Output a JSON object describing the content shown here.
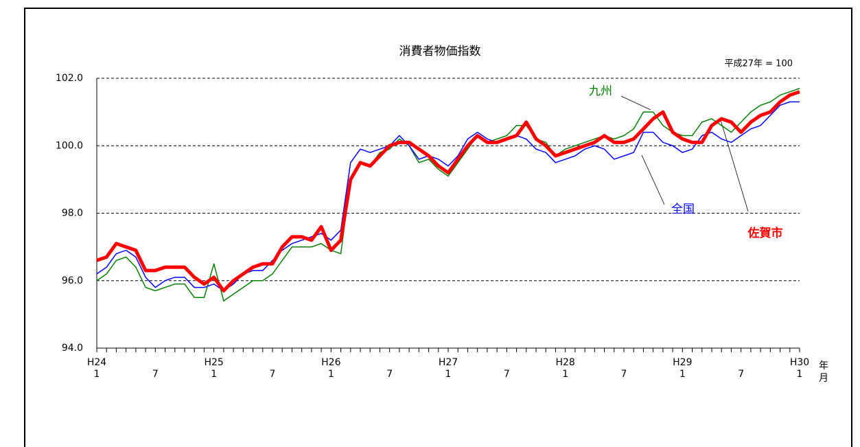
{
  "chart_data": {
    "type": "line",
    "title": "消費者物価指数",
    "annotation": "平成27年 = 100",
    "x_unit_labels": [
      "年",
      "月"
    ],
    "categories": [
      "1",
      null,
      null,
      null,
      null,
      null,
      "7",
      null,
      null,
      null,
      null,
      null,
      "1",
      null,
      null,
      null,
      null,
      null,
      "7",
      null,
      null,
      null,
      null,
      null,
      "1",
      null,
      null,
      null,
      null,
      null,
      "7",
      null,
      null,
      null,
      null,
      null,
      "1",
      null,
      null,
      null,
      null,
      null,
      "7",
      null,
      null,
      null,
      null,
      null,
      "1",
      null,
      null,
      null,
      null,
      null,
      "7",
      null,
      null,
      null,
      null,
      null,
      "1",
      null,
      null,
      null,
      null,
      null,
      "7",
      null,
      null,
      null,
      null,
      null,
      "1"
    ],
    "era_labels": [
      "H24",
      null,
      null,
      null,
      null,
      null,
      null,
      null,
      null,
      null,
      null,
      null,
      "H25",
      null,
      null,
      null,
      null,
      null,
      null,
      null,
      null,
      null,
      null,
      null,
      "H26",
      null,
      null,
      null,
      null,
      null,
      null,
      null,
      null,
      null,
      null,
      null,
      "H27",
      null,
      null,
      null,
      null,
      null,
      null,
      null,
      null,
      null,
      null,
      null,
      "H28",
      null,
      null,
      null,
      null,
      null,
      null,
      null,
      null,
      null,
      null,
      null,
      "H29",
      null,
      null,
      null,
      null,
      null,
      null,
      null,
      null,
      null,
      null,
      null,
      "H30"
    ],
    "ylim": [
      94,
      102
    ],
    "yticks": [
      {
        "value": 94,
        "label": "94.0"
      },
      {
        "value": 96,
        "label": "96.0"
      },
      {
        "value": 98,
        "label": "98.0"
      },
      {
        "value": 100,
        "label": "100.0"
      },
      {
        "value": 102,
        "label": "102.0"
      }
    ],
    "grid": true,
    "series": [
      {
        "name": "九州",
        "color": "#008000",
        "values": [
          96.0,
          96.2,
          96.6,
          96.7,
          96.4,
          95.8,
          95.7,
          95.8,
          95.9,
          95.9,
          95.5,
          95.5,
          96.5,
          95.4,
          95.6,
          95.8,
          96.0,
          96.0,
          96.2,
          96.6,
          97.0,
          97.0,
          97.0,
          97.1,
          96.9,
          96.8,
          99.0,
          99.5,
          99.4,
          99.8,
          99.9,
          100.2,
          100.0,
          99.5,
          99.6,
          99.3,
          99.1,
          99.5,
          99.9,
          100.3,
          100.1,
          100.2,
          100.3,
          100.6,
          100.6,
          100.2,
          100.1,
          99.7,
          99.9,
          100.0,
          100.1,
          100.2,
          100.3,
          100.2,
          100.3,
          100.5,
          101.0,
          101.0,
          100.6,
          100.4,
          100.3,
          100.3,
          100.7,
          100.8,
          100.6,
          100.4,
          100.7,
          101.0,
          101.2,
          101.3,
          101.5,
          101.6,
          101.7
        ]
      },
      {
        "name": "全国",
        "color": "#0000ff",
        "values": [
          96.2,
          96.4,
          96.8,
          96.9,
          96.7,
          96.1,
          95.8,
          96.0,
          96.1,
          96.1,
          95.8,
          95.8,
          95.9,
          95.7,
          95.9,
          96.2,
          96.3,
          96.3,
          96.6,
          96.9,
          97.1,
          97.2,
          97.3,
          97.4,
          97.2,
          97.5,
          99.5,
          99.9,
          99.8,
          99.9,
          100.0,
          100.3,
          100.0,
          99.6,
          99.7,
          99.6,
          99.4,
          99.7,
          100.2,
          100.4,
          100.2,
          100.1,
          100.2,
          100.3,
          100.2,
          99.9,
          99.8,
          99.5,
          99.6,
          99.7,
          99.9,
          100.0,
          99.9,
          99.6,
          99.7,
          99.8,
          100.4,
          100.4,
          100.1,
          100.0,
          99.8,
          99.9,
          100.3,
          100.4,
          100.2,
          100.1,
          100.3,
          100.5,
          100.6,
          100.9,
          101.2,
          101.3,
          101.3
        ]
      },
      {
        "name": "佐賀市",
        "color": "#ff0000",
        "values": [
          96.6,
          96.7,
          97.1,
          97.0,
          96.9,
          96.3,
          96.3,
          96.4,
          96.4,
          96.4,
          96.1,
          95.9,
          96.1,
          95.7,
          96.0,
          96.2,
          96.4,
          96.5,
          96.5,
          97.0,
          97.3,
          97.3,
          97.2,
          97.6,
          96.9,
          97.2,
          99.0,
          99.5,
          99.4,
          99.7,
          100.0,
          100.1,
          100.1,
          99.9,
          99.7,
          99.4,
          99.2,
          99.6,
          100.0,
          100.3,
          100.1,
          100.1,
          100.2,
          100.3,
          100.7,
          100.2,
          100.0,
          99.7,
          99.8,
          99.9,
          100.0,
          100.1,
          100.3,
          100.1,
          100.1,
          100.2,
          100.5,
          100.8,
          101.0,
          100.4,
          100.2,
          100.1,
          100.1,
          100.6,
          100.8,
          100.7,
          100.4,
          100.7,
          100.9,
          101.0,
          101.3,
          101.5,
          101.6
        ]
      }
    ]
  }
}
